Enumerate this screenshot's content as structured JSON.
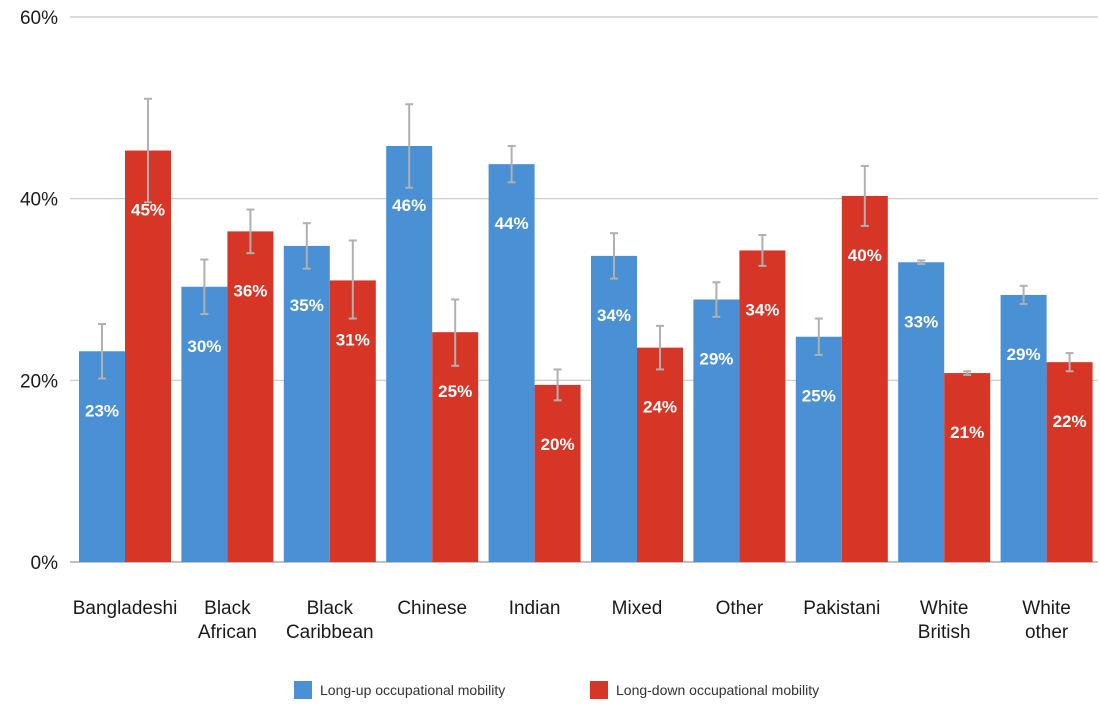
{
  "colors": {
    "up": "#4a90d4",
    "down": "#d73526",
    "grid": "#c8c8c8",
    "axis": "#9a9a9a",
    "error": "#b0b0b0"
  },
  "chart_data": {
    "type": "bar",
    "title": "",
    "xlabel": "",
    "ylabel": "",
    "ylim": [
      0,
      60
    ],
    "yticks": [
      0,
      20,
      40,
      60
    ],
    "ytick_labels": [
      "0%",
      "20%",
      "40%",
      "60%"
    ],
    "grid": true,
    "legend_position": "bottom",
    "categories": [
      [
        "Bangladeshi"
      ],
      [
        "Black",
        "African"
      ],
      [
        "Black",
        "Caribbean"
      ],
      [
        "Chinese"
      ],
      [
        "Indian"
      ],
      [
        "Mixed"
      ],
      [
        "Other"
      ],
      [
        "Pakistani"
      ],
      [
        "White",
        "British"
      ],
      [
        "White",
        "other"
      ]
    ],
    "series": [
      {
        "name": "Long-up occupational mobility",
        "color_key": "up",
        "values": [
          23.2,
          30.3,
          34.8,
          45.8,
          43.8,
          33.7,
          28.9,
          24.8,
          33.0,
          29.4
        ],
        "labels": [
          "23%",
          "30%",
          "35%",
          "46%",
          "44%",
          "34%",
          "29%",
          "25%",
          "33%",
          "29%"
        ],
        "error_low": [
          20.2,
          27.3,
          32.3,
          41.2,
          41.8,
          31.2,
          27.0,
          22.8,
          32.8,
          28.4
        ],
        "error_high": [
          26.2,
          33.3,
          37.3,
          50.4,
          45.8,
          36.2,
          30.8,
          26.8,
          33.2,
          30.4
        ]
      },
      {
        "name": "Long-down occupational mobility",
        "color_key": "down",
        "values": [
          45.3,
          36.4,
          31.0,
          25.3,
          19.5,
          23.6,
          34.3,
          40.3,
          20.8,
          22.0
        ],
        "labels": [
          "45%",
          "36%",
          "31%",
          "25%",
          "20%",
          "24%",
          "34%",
          "40%",
          "21%",
          "22%"
        ],
        "error_low": [
          39.6,
          34.0,
          26.8,
          21.6,
          17.8,
          21.2,
          32.6,
          37.0,
          20.6,
          21.0
        ],
        "error_high": [
          51.0,
          38.8,
          35.4,
          28.9,
          21.2,
          26.0,
          36.0,
          43.6,
          21.0,
          23.0
        ]
      }
    ]
  }
}
